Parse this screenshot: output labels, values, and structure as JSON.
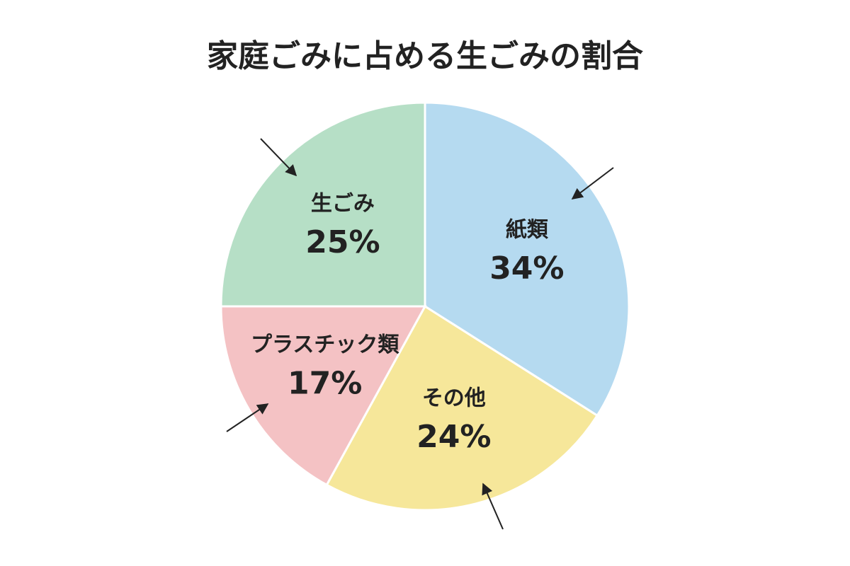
{
  "chart_data": {
    "type": "pie",
    "title": "家庭ごみに占める生ごみの割合",
    "categories": [
      "紙類",
      "その他",
      "プラスチック類",
      "生ごみ"
    ],
    "values": [
      34,
      24,
      17,
      25
    ],
    "value_labels": [
      "34%",
      "24%",
      "17%",
      "25%"
    ],
    "colors": [
      "#b5daf0",
      "#f6e79a",
      "#f4c2c4",
      "#b6dfc6"
    ]
  }
}
